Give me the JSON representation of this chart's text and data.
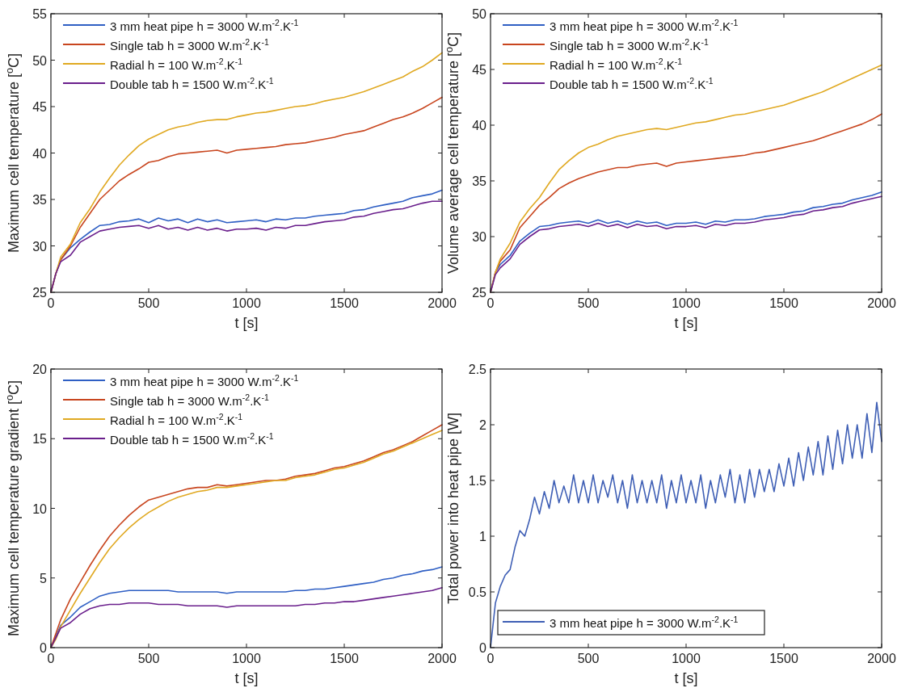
{
  "chart_data": [
    {
      "type": "line",
      "xlabel": "t [s]",
      "ylabel": "Maximum cell temperature [$^{o}$C]",
      "xlim": [
        0,
        2000
      ],
      "xticks": [
        0,
        500,
        1000,
        1500,
        2000
      ],
      "ylim": [
        25,
        55
      ],
      "yticks": [
        25,
        30,
        35,
        40,
        45,
        50,
        55
      ],
      "legend": "top left",
      "x": [
        0,
        25,
        50,
        100,
        150,
        200,
        250,
        300,
        350,
        400,
        450,
        500,
        550,
        600,
        650,
        700,
        750,
        800,
        850,
        900,
        950,
        1000,
        1050,
        1100,
        1150,
        1200,
        1250,
        1300,
        1350,
        1400,
        1450,
        1500,
        1550,
        1600,
        1650,
        1700,
        1750,
        1800,
        1850,
        1900,
        1950,
        2000
      ],
      "series": [
        {
          "name": "3 mm heat pipe h = 3000 W.m$^{-2}$.K$^{-1}$",
          "color": "#2f5fc4",
          "values": [
            25,
            27,
            28.5,
            29.8,
            30.7,
            31.5,
            32.2,
            32.3,
            32.6,
            32.7,
            32.9,
            32.5,
            33.0,
            32.7,
            32.9,
            32.5,
            32.9,
            32.6,
            32.8,
            32.5,
            32.6,
            32.7,
            32.8,
            32.6,
            32.9,
            32.8,
            33.0,
            33.0,
            33.2,
            33.3,
            33.4,
            33.5,
            33.8,
            33.9,
            34.2,
            34.4,
            34.6,
            34.8,
            35.2,
            35.4,
            35.6,
            36.0
          ]
        },
        {
          "name": "Single tab h = 3000 W.m$^{-2}$.K$^{-1}$",
          "color": "#c8451e",
          "values": [
            25,
            27,
            28.5,
            30,
            32,
            33.5,
            35,
            36,
            37,
            37.7,
            38.3,
            39,
            39.2,
            39.6,
            39.9,
            40.0,
            40.1,
            40.2,
            40.3,
            40.0,
            40.3,
            40.4,
            40.5,
            40.6,
            40.7,
            40.9,
            41.0,
            41.1,
            41.3,
            41.5,
            41.7,
            42.0,
            42.2,
            42.4,
            42.8,
            43.2,
            43.6,
            43.9,
            44.3,
            44.8,
            45.4,
            46.0
          ]
        },
        {
          "name": "Radial h = 100 W.m$^{-2}$.K$^{-1}$",
          "color": "#e0a922",
          "values": [
            25,
            27,
            28.8,
            30.2,
            32.5,
            34,
            35.8,
            37.3,
            38.7,
            39.8,
            40.8,
            41.5,
            42.0,
            42.5,
            42.8,
            43.0,
            43.3,
            43.5,
            43.6,
            43.6,
            43.9,
            44.1,
            44.3,
            44.4,
            44.6,
            44.8,
            45.0,
            45.1,
            45.3,
            45.6,
            45.8,
            46.0,
            46.3,
            46.6,
            47.0,
            47.4,
            47.8,
            48.2,
            48.8,
            49.3,
            50.0,
            50.8
          ]
        },
        {
          "name": "Double tab h = 1500 W.m$^{-2}$.K$^{-1}$",
          "color": "#6a1f8c",
          "values": [
            25,
            27,
            28.3,
            29.0,
            30.4,
            31.0,
            31.6,
            31.8,
            32.0,
            32.1,
            32.2,
            31.9,
            32.2,
            31.8,
            32.0,
            31.7,
            32.0,
            31.7,
            31.9,
            31.6,
            31.8,
            31.8,
            31.9,
            31.7,
            32.0,
            31.9,
            32.2,
            32.2,
            32.4,
            32.6,
            32.7,
            32.8,
            33.1,
            33.2,
            33.5,
            33.7,
            33.9,
            34.0,
            34.3,
            34.6,
            34.8,
            34.8
          ]
        }
      ]
    },
    {
      "type": "line",
      "xlabel": "t [s]",
      "ylabel": "Volume average cell temperature [$^{o}$C]",
      "xlim": [
        0,
        2000
      ],
      "xticks": [
        0,
        500,
        1000,
        1500,
        2000
      ],
      "ylim": [
        25,
        50
      ],
      "yticks": [
        25,
        30,
        35,
        40,
        45,
        50
      ],
      "legend": "top left",
      "x": [
        0,
        25,
        50,
        100,
        150,
        200,
        250,
        300,
        350,
        400,
        450,
        500,
        550,
        600,
        650,
        700,
        750,
        800,
        850,
        900,
        950,
        1000,
        1050,
        1100,
        1150,
        1200,
        1250,
        1300,
        1350,
        1400,
        1450,
        1500,
        1550,
        1600,
        1650,
        1700,
        1750,
        1800,
        1850,
        1900,
        1950,
        2000
      ],
      "series": [
        {
          "name": "3 mm heat pipe h = 3000 W.m$^{-2}$.K$^{-1}$",
          "color": "#2f5fc4",
          "values": [
            25,
            26.8,
            27.5,
            28.3,
            29.6,
            30.3,
            30.9,
            31.0,
            31.2,
            31.3,
            31.4,
            31.2,
            31.5,
            31.2,
            31.4,
            31.1,
            31.4,
            31.2,
            31.3,
            31.0,
            31.2,
            31.2,
            31.3,
            31.1,
            31.4,
            31.3,
            31.5,
            31.5,
            31.6,
            31.8,
            31.9,
            32.0,
            32.2,
            32.3,
            32.6,
            32.7,
            32.9,
            33.0,
            33.3,
            33.5,
            33.7,
            34.0
          ]
        },
        {
          "name": "Single tab h = 3000 W.m$^{-2}$.K$^{-1}$",
          "color": "#c8451e",
          "values": [
            25,
            26.8,
            27.8,
            28.8,
            30.8,
            31.8,
            32.8,
            33.5,
            34.3,
            34.8,
            35.2,
            35.5,
            35.8,
            36.0,
            36.2,
            36.2,
            36.4,
            36.5,
            36.6,
            36.3,
            36.6,
            36.7,
            36.8,
            36.9,
            37.0,
            37.1,
            37.2,
            37.3,
            37.5,
            37.6,
            37.8,
            38.0,
            38.2,
            38.4,
            38.6,
            38.9,
            39.2,
            39.5,
            39.8,
            40.1,
            40.5,
            41.0
          ]
        },
        {
          "name": "Radial h = 100 W.m$^{-2}$.K$^{-1}$",
          "color": "#e0a922",
          "values": [
            25,
            26.8,
            28.0,
            29.4,
            31.3,
            32.5,
            33.5,
            34.8,
            36.0,
            36.8,
            37.5,
            38.0,
            38.3,
            38.7,
            39.0,
            39.2,
            39.4,
            39.6,
            39.7,
            39.6,
            39.8,
            40.0,
            40.2,
            40.3,
            40.5,
            40.7,
            40.9,
            41.0,
            41.2,
            41.4,
            41.6,
            41.8,
            42.1,
            42.4,
            42.7,
            43.0,
            43.4,
            43.8,
            44.2,
            44.6,
            45.0,
            45.4
          ]
        },
        {
          "name": "Double tab h = 1500 W.m$^{-2}$.K$^{-1}$",
          "color": "#6a1f8c",
          "values": [
            25,
            26.6,
            27.2,
            28.0,
            29.3,
            30.0,
            30.6,
            30.7,
            30.9,
            31.0,
            31.1,
            30.9,
            31.2,
            30.9,
            31.1,
            30.8,
            31.1,
            30.9,
            31.0,
            30.7,
            30.9,
            30.9,
            31.0,
            30.8,
            31.1,
            31.0,
            31.2,
            31.2,
            31.3,
            31.5,
            31.6,
            31.7,
            31.9,
            32.0,
            32.3,
            32.4,
            32.6,
            32.7,
            33.0,
            33.2,
            33.4,
            33.6
          ]
        }
      ]
    },
    {
      "type": "line",
      "xlabel": "t [s]",
      "ylabel": "Maximum cell temperature gradient [$^{o}$C]",
      "xlim": [
        0,
        2000
      ],
      "xticks": [
        0,
        500,
        1000,
        1500,
        2000
      ],
      "ylim": [
        0,
        20
      ],
      "yticks": [
        0,
        5,
        10,
        15,
        20
      ],
      "legend": "top left",
      "x": [
        0,
        25,
        50,
        100,
        150,
        200,
        250,
        300,
        350,
        400,
        450,
        500,
        550,
        600,
        650,
        700,
        750,
        800,
        850,
        900,
        950,
        1000,
        1050,
        1100,
        1150,
        1200,
        1250,
        1300,
        1350,
        1400,
        1450,
        1500,
        1550,
        1600,
        1650,
        1700,
        1750,
        1800,
        1850,
        1900,
        1950,
        2000
      ],
      "series": [
        {
          "name": "3 mm heat pipe h = 3000 W.m$^{-2}$.K$^{-1}$",
          "color": "#2f5fc4",
          "values": [
            0,
            0.8,
            1.6,
            2.2,
            2.9,
            3.3,
            3.7,
            3.9,
            4.0,
            4.1,
            4.1,
            4.1,
            4.1,
            4.1,
            4.0,
            4.0,
            4.0,
            4.0,
            4.0,
            3.9,
            4.0,
            4.0,
            4.0,
            4.0,
            4.0,
            4.0,
            4.1,
            4.1,
            4.2,
            4.2,
            4.3,
            4.4,
            4.5,
            4.6,
            4.7,
            4.9,
            5.0,
            5.2,
            5.3,
            5.5,
            5.6,
            5.8
          ]
        },
        {
          "name": "Single tab h = 3000 W.m$^{-2}$.K$^{-1}$",
          "color": "#c8451e",
          "values": [
            0,
            1.0,
            2.0,
            3.5,
            4.7,
            5.9,
            7.0,
            8.0,
            8.8,
            9.5,
            10.1,
            10.6,
            10.8,
            11.0,
            11.2,
            11.4,
            11.5,
            11.5,
            11.7,
            11.6,
            11.7,
            11.8,
            11.9,
            12.0,
            12.0,
            12.1,
            12.3,
            12.4,
            12.5,
            12.7,
            12.9,
            13.0,
            13.2,
            13.4,
            13.7,
            14.0,
            14.2,
            14.5,
            14.8,
            15.2,
            15.6,
            16.0
          ]
        },
        {
          "name": "Radial h = 100 W.m$^{-2}$.K$^{-1}$",
          "color": "#e0a922",
          "values": [
            0,
            0.6,
            1.5,
            2.7,
            3.9,
            5.0,
            6.1,
            7.1,
            7.9,
            8.6,
            9.2,
            9.7,
            10.1,
            10.5,
            10.8,
            11.0,
            11.2,
            11.3,
            11.5,
            11.5,
            11.6,
            11.7,
            11.8,
            11.9,
            12.0,
            12.0,
            12.2,
            12.3,
            12.4,
            12.6,
            12.8,
            12.9,
            13.1,
            13.3,
            13.6,
            13.9,
            14.1,
            14.4,
            14.7,
            15.0,
            15.3,
            15.6
          ]
        },
        {
          "name": "Double tab h = 1500 W.m$^{-2}$.K$^{-1}$",
          "color": "#6a1f8c",
          "values": [
            0,
            0.7,
            1.4,
            1.8,
            2.4,
            2.8,
            3.0,
            3.1,
            3.1,
            3.2,
            3.2,
            3.2,
            3.1,
            3.1,
            3.1,
            3.0,
            3.0,
            3.0,
            3.0,
            2.9,
            3.0,
            3.0,
            3.0,
            3.0,
            3.0,
            3.0,
            3.0,
            3.1,
            3.1,
            3.2,
            3.2,
            3.3,
            3.3,
            3.4,
            3.5,
            3.6,
            3.7,
            3.8,
            3.9,
            4.0,
            4.1,
            4.3
          ]
        }
      ]
    },
    {
      "type": "line",
      "xlabel": "t [s]",
      "ylabel": "Total power into heat pipe [W]",
      "xlim": [
        0,
        2000
      ],
      "xticks": [
        0,
        500,
        1000,
        1500,
        2000
      ],
      "ylim": [
        0,
        2.5
      ],
      "yticks": [
        0,
        0.5,
        1,
        1.5,
        2,
        2.5
      ],
      "legend": "bottom left",
      "x": [
        0,
        25,
        50,
        75,
        100,
        125,
        150,
        175,
        200,
        225,
        250,
        275,
        300,
        325,
        350,
        375,
        400,
        425,
        450,
        475,
        500,
        525,
        550,
        575,
        600,
        625,
        650,
        675,
        700,
        725,
        750,
        775,
        800,
        825,
        850,
        875,
        900,
        925,
        950,
        975,
        1000,
        1025,
        1050,
        1075,
        1100,
        1125,
        1150,
        1175,
        1200,
        1225,
        1250,
        1275,
        1300,
        1325,
        1350,
        1375,
        1400,
        1425,
        1450,
        1475,
        1500,
        1525,
        1550,
        1575,
        1600,
        1625,
        1650,
        1675,
        1700,
        1725,
        1750,
        1775,
        1800,
        1825,
        1850,
        1875,
        1900,
        1925,
        1950,
        1975,
        2000
      ],
      "series": [
        {
          "name": "3 mm heat pipe h = 3000 W.m$^{-2}$.K$^{-1}$",
          "color": "#3f5fb5",
          "values": [
            0,
            0.4,
            0.55,
            0.65,
            0.7,
            0.9,
            1.05,
            1.0,
            1.15,
            1.35,
            1.2,
            1.4,
            1.25,
            1.5,
            1.3,
            1.45,
            1.3,
            1.55,
            1.3,
            1.5,
            1.3,
            1.55,
            1.3,
            1.5,
            1.35,
            1.55,
            1.3,
            1.5,
            1.25,
            1.55,
            1.3,
            1.5,
            1.3,
            1.5,
            1.3,
            1.55,
            1.25,
            1.5,
            1.3,
            1.55,
            1.3,
            1.5,
            1.3,
            1.55,
            1.25,
            1.5,
            1.3,
            1.55,
            1.35,
            1.6,
            1.3,
            1.55,
            1.3,
            1.6,
            1.35,
            1.6,
            1.4,
            1.6,
            1.4,
            1.65,
            1.45,
            1.7,
            1.45,
            1.75,
            1.5,
            1.8,
            1.55,
            1.85,
            1.55,
            1.9,
            1.6,
            1.95,
            1.65,
            2.0,
            1.7,
            2.0,
            1.7,
            2.1,
            1.75,
            2.2,
            1.85
          ]
        }
      ]
    }
  ]
}
